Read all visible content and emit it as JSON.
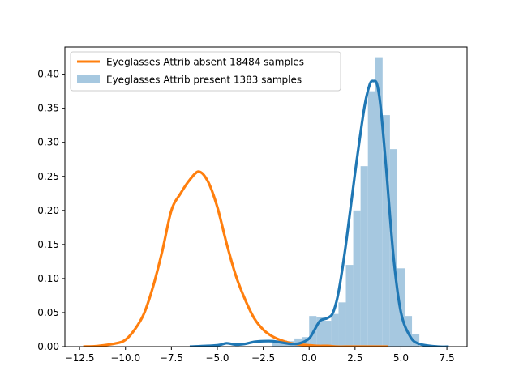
{
  "chart_data": {
    "type": "histogram-kde",
    "title": "",
    "xlabel": "",
    "ylabel": "",
    "xlim": [
      -13.3,
      8.6
    ],
    "ylim": [
      0,
      0.44
    ],
    "x_ticks": [
      -12.5,
      -10.0,
      -7.5,
      -5.0,
      -2.5,
      0.0,
      2.5,
      5.0,
      7.5
    ],
    "x_tick_labels": [
      "−12.5",
      "−10.0",
      "−7.5",
      "−5.0",
      "−2.5",
      "0.0",
      "2.5",
      "5.0",
      "7.5"
    ],
    "y_ticks": [
      0.0,
      0.05,
      0.1,
      0.15,
      0.2,
      0.25,
      0.3,
      0.35,
      0.4
    ],
    "y_tick_labels": [
      "0.00",
      "0.05",
      "0.10",
      "0.15",
      "0.20",
      "0.25",
      "0.30",
      "0.35",
      "0.40"
    ],
    "legend": {
      "position": "upper-left",
      "entries": [
        {
          "label": "Eyeglasses Attrib absent 18484 samples",
          "kind": "line",
          "color": "#ff7f0e"
        },
        {
          "label": "Eyeglasses Attrib present 1383 samples",
          "kind": "patch",
          "color": "#a6c8e0"
        }
      ]
    },
    "series": [
      {
        "kind": "kde-line",
        "color": "#ff7f0e",
        "x": [
          -12.3,
          -11.5,
          -10.5,
          -10.0,
          -9.5,
          -9.0,
          -8.5,
          -8.0,
          -7.5,
          -7.0,
          -6.5,
          -6.0,
          -5.5,
          -5.0,
          -4.5,
          -4.0,
          -3.5,
          -3.0,
          -2.5,
          -2.0,
          -1.5,
          -1.0,
          -0.5,
          0.0,
          0.5,
          1.0,
          1.5,
          2.0,
          3.0,
          4.3
        ],
        "y": [
          0.0,
          0.001,
          0.005,
          0.01,
          0.025,
          0.048,
          0.088,
          0.14,
          0.2,
          0.225,
          0.245,
          0.257,
          0.242,
          0.205,
          0.152,
          0.105,
          0.07,
          0.042,
          0.025,
          0.015,
          0.009,
          0.005,
          0.003,
          0.002,
          0.001,
          0.001,
          0.0,
          0.0,
          0.0,
          0.0
        ]
      },
      {
        "kind": "kde-line",
        "color": "#1f77b4",
        "x": [
          -6.5,
          -5.0,
          -4.5,
          -4.0,
          -3.5,
          -3.0,
          -2.5,
          -2.0,
          -1.5,
          -1.0,
          -0.5,
          0.0,
          0.3,
          0.6,
          1.0,
          1.3,
          1.6,
          2.0,
          2.5,
          3.0,
          3.3,
          3.5,
          3.7,
          3.9,
          4.2,
          4.6,
          5.0,
          5.5,
          6.0,
          7.0,
          7.6
        ],
        "y": [
          0.0,
          0.002,
          0.005,
          0.003,
          0.004,
          0.007,
          0.008,
          0.008,
          0.006,
          0.004,
          0.005,
          0.012,
          0.025,
          0.038,
          0.042,
          0.05,
          0.08,
          0.15,
          0.255,
          0.35,
          0.385,
          0.39,
          0.385,
          0.35,
          0.26,
          0.13,
          0.05,
          0.015,
          0.004,
          0.0,
          0.0
        ]
      },
      {
        "kind": "histogram",
        "color": "#a6c8e0",
        "bin_edges": [
          -2.0,
          -1.6,
          -1.2,
          -0.8,
          -0.4,
          0.0,
          0.4,
          0.8,
          1.2,
          1.6,
          2.0,
          2.4,
          2.8,
          3.2,
          3.6,
          4.0,
          4.4,
          4.8,
          5.2,
          5.6,
          6.0
        ],
        "values": [
          0.006,
          0.009,
          0.008,
          0.012,
          0.014,
          0.045,
          0.043,
          0.038,
          0.048,
          0.065,
          0.12,
          0.2,
          0.265,
          0.375,
          0.425,
          0.34,
          0.29,
          0.115,
          0.045,
          0.018
        ]
      }
    ]
  }
}
